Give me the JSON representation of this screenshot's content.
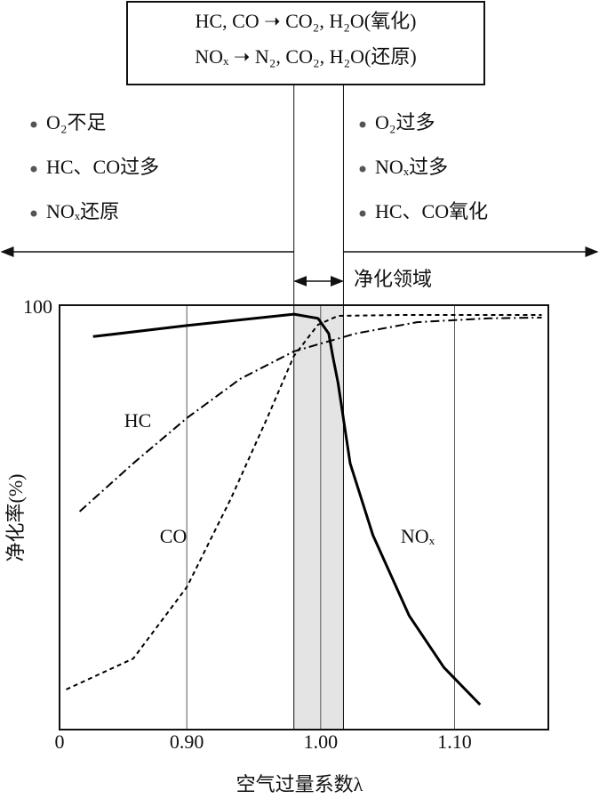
{
  "chart_data": {
    "type": "line",
    "reaction_lines": [
      "HC, CO ➝ CO₂, H₂O(氧化)",
      "NOₓ ➝ N₂, CO₂, H₂O(还原)"
    ],
    "rich_side": [
      "O₂不足",
      "HC、CO过多",
      "NOₓ还原"
    ],
    "lean_side": [
      "O₂过多",
      "NOₓ过多",
      "HC、CO氧化"
    ],
    "window_label": "净化领域",
    "window": [
      0.98,
      1.017
    ],
    "x_label": "空气过量系数λ",
    "y_label": "净化率(%)",
    "xlim": [
      0.805,
      1.17
    ],
    "xticks": [
      {
        "value": 0.9,
        "label": "0.90"
      },
      {
        "value": 1.0,
        "label": "1.00"
      },
      {
        "value": 1.1,
        "label": "1.10"
      }
    ],
    "ylim": [
      0,
      100
    ],
    "yticks": [
      0,
      100
    ],
    "grid": true,
    "series": [
      {
        "name": "NOₓ",
        "color": "#000000",
        "dash": "solid",
        "x": [
          0.83,
          0.9,
          0.98,
          0.998,
          1.006,
          1.009,
          1.013,
          1.022,
          1.039,
          1.066,
          1.092,
          1.119
        ],
        "values": [
          93,
          95.6,
          98.3,
          97.3,
          93.7,
          88.4,
          82,
          63,
          46,
          27,
          14.7,
          5.9
        ]
      },
      {
        "name": "CO",
        "color": "#000000",
        "dash": "dashed",
        "x": [
          0.81,
          0.86,
          0.9,
          0.933,
          0.96,
          0.98,
          0.998,
          1.013,
          1.059,
          1.165
        ],
        "values": [
          9.5,
          16.8,
          33.7,
          54.7,
          73.7,
          88.4,
          95.8,
          97.9,
          98.1,
          98.1
        ]
      },
      {
        "name": "HC",
        "color": "#000000",
        "dash": "dashdot",
        "x": [
          0.82,
          0.86,
          0.9,
          0.94,
          0.98,
          1.026,
          1.072,
          1.125,
          1.165
        ],
        "values": [
          51.6,
          63,
          73.7,
          83,
          89.5,
          93.7,
          96.4,
          97.3,
          97.5
        ]
      }
    ]
  }
}
